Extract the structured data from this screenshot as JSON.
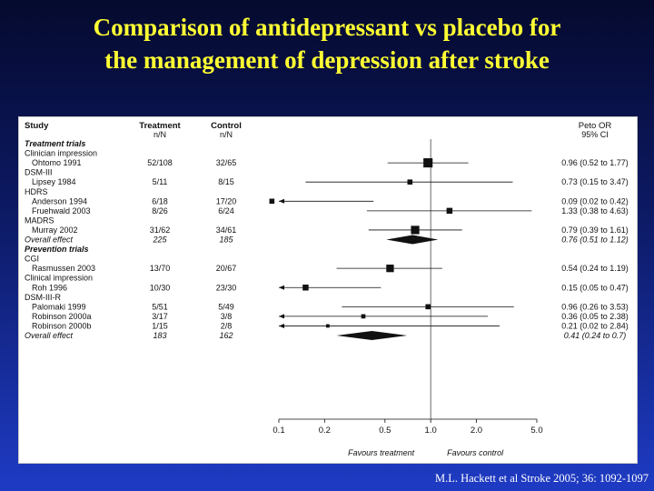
{
  "title": {
    "line1": "Comparison of antidepressant vs placebo for",
    "line2": "the management of depression after stroke"
  },
  "citation": "M.L. Hackett et al Stroke 2005; 36: 1092-1097",
  "colors": {
    "title": "#ffff33",
    "background_top": "#050a2e",
    "background_bottom": "#1e3bc4",
    "marks": "#111111"
  },
  "chart_data": {
    "type": "forest",
    "x_scale": "log",
    "xlim": [
      0.1,
      5.0
    ],
    "xticks": [
      "0.1",
      "0.2",
      "0.5",
      "1.0",
      "2.0",
      "5.0"
    ],
    "tick_values": [
      0.1,
      0.2,
      0.5,
      1.0,
      2.0,
      5.0
    ],
    "xlabel_left": "Favours treatment",
    "xlabel_right": "Favours control",
    "headers": {
      "study": "Study",
      "treatment": "Treatment",
      "treatment_sub": "n/N",
      "control": "Control",
      "control_sub": "n/N",
      "or": "Peto OR",
      "or_sub": "95% CI"
    },
    "rows": [
      {
        "kind": "section",
        "label": "Treatment trials"
      },
      {
        "kind": "group",
        "label": "Clinician impression"
      },
      {
        "kind": "study",
        "label": "Ohtomo 1991",
        "treatment": "52/108",
        "control": "32/65",
        "or": 0.96,
        "lo": 0.52,
        "hi": 1.77,
        "ci_text": "0.96 (0.52 to 1.77)",
        "weight": 9
      },
      {
        "kind": "group",
        "label": "DSM-III"
      },
      {
        "kind": "study",
        "label": "Lipsey 1984",
        "treatment": "5/11",
        "control": "8/15",
        "or": 0.73,
        "lo": 0.15,
        "hi": 3.47,
        "ci_text": "0.73 (0.15 to 3.47)",
        "weight": 4
      },
      {
        "kind": "group",
        "label": "HDRS"
      },
      {
        "kind": "study",
        "label": "Anderson 1994",
        "treatment": "6/18",
        "control": "17/20",
        "or": 0.09,
        "lo": 0.02,
        "hi": 0.42,
        "ci_text": "0.09 (0.02 to 0.42)",
        "weight": 4
      },
      {
        "kind": "study",
        "label": "Fruehwald 2003",
        "treatment": "8/26",
        "control": "6/24",
        "or": 1.33,
        "lo": 0.38,
        "hi": 4.63,
        "ci_text": "1.33 (0.38 to 4.63)",
        "weight": 5
      },
      {
        "kind": "group",
        "label": "MADRS"
      },
      {
        "kind": "study",
        "label": "Murray 2002",
        "treatment": "31/62",
        "control": "34/61",
        "or": 0.79,
        "lo": 0.39,
        "hi": 1.61,
        "ci_text": "0.79 (0.39 to 1.61)",
        "weight": 8
      },
      {
        "kind": "overall",
        "label": "Overall effect",
        "treatment": "225",
        "control": "185",
        "or": 0.76,
        "lo": 0.51,
        "hi": 1.12,
        "ci_text": "0.76 (0.51 to 1.12)"
      },
      {
        "kind": "section",
        "label": "Prevention trials"
      },
      {
        "kind": "group",
        "label": "CGI"
      },
      {
        "kind": "study",
        "label": "Rasmussen 2003",
        "treatment": "13/70",
        "control": "20/67",
        "or": 0.54,
        "lo": 0.24,
        "hi": 1.19,
        "ci_text": "0.54 (0.24 to 1.19)",
        "weight": 7
      },
      {
        "kind": "group",
        "label": "Clinical impression"
      },
      {
        "kind": "study",
        "label": "Roh 1996",
        "treatment": "10/30",
        "control": "23/30",
        "or": 0.15,
        "lo": 0.05,
        "hi": 0.47,
        "ci_text": "0.15 (0.05 to 0.47)",
        "weight": 5
      },
      {
        "kind": "group",
        "label": "DSM-III-R"
      },
      {
        "kind": "study",
        "label": "Palomaki 1999",
        "treatment": "5/51",
        "control": "5/49",
        "or": 0.96,
        "lo": 0.26,
        "hi": 3.53,
        "ci_text": "0.96 (0.26 to 3.53)",
        "weight": 4
      },
      {
        "kind": "study",
        "label": "Robinson 2000a",
        "treatment": "3/17",
        "control": "3/8",
        "or": 0.36,
        "lo": 0.05,
        "hi": 2.38,
        "ci_text": "0.36 (0.05 to 2.38)",
        "weight": 3
      },
      {
        "kind": "study",
        "label": "Robinson 2000b",
        "treatment": "1/15",
        "control": "2/8",
        "or": 0.21,
        "lo": 0.02,
        "hi": 2.84,
        "ci_text": "0.21 (0.02 to 2.84)",
        "weight": 2
      },
      {
        "kind": "overall",
        "label": "Overall effect",
        "treatment": "183",
        "control": "162",
        "or": 0.41,
        "lo": 0.24,
        "hi": 0.7,
        "ci_text": "0.41 (0.24 to 0.7)"
      }
    ]
  }
}
